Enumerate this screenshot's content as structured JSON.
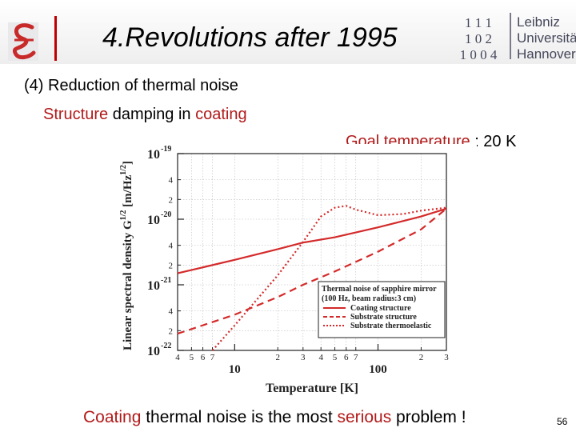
{
  "header": {
    "title": "4.Revolutions after 1995",
    "university": [
      "Leibniz",
      "Universität",
      "Hannover"
    ],
    "logo_numbers": [
      "1 1 1",
      "1 0 2",
      "1 0 0 4"
    ]
  },
  "body": {
    "section": "(4) Reduction of thermal noise",
    "subline_red1": "Structure",
    "subline_mid": " damping in ",
    "subline_red2": "coating",
    "goal_red": "Goal temperature",
    "goal_rest": " : 20 K"
  },
  "footer": {
    "conclusion_red1": "Coating",
    "conclusion_mid": " thermal noise is the most ",
    "conclusion_red2": "serious",
    "conclusion_end": " problem !",
    "page_number": "56"
  },
  "colors": {
    "accent_red": "#b21a1a",
    "curve_red": "#d42a2a"
  },
  "chart_data": {
    "type": "line",
    "xlabel": "Temperature [K]",
    "ylabel": "Linear spectral density G",
    "ylabel_sup": "1/2",
    "ylabel_units": "[m/Hz",
    "ylabel_units_sup": "1/2",
    "ylabel_units_close": "]",
    "x_scale": "log",
    "y_scale": "log",
    "xlim": [
      4,
      300
    ],
    "ylim": [
      1e-22,
      1e-19
    ],
    "x_major_ticks": [
      {
        "value": 10,
        "label": "10"
      },
      {
        "value": 100,
        "label": "100"
      }
    ],
    "x_minor_ticks": [
      {
        "value": 4,
        "label": "4"
      },
      {
        "value": 5,
        "label": "5"
      },
      {
        "value": 6,
        "label": "6"
      },
      {
        "value": 7,
        "label": "7"
      },
      {
        "value": 20,
        "label": "2"
      },
      {
        "value": 30,
        "label": "3"
      },
      {
        "value": 40,
        "label": "4"
      },
      {
        "value": 50,
        "label": "5"
      },
      {
        "value": 60,
        "label": "6"
      },
      {
        "value": 70,
        "label": "7"
      },
      {
        "value": 200,
        "label": "2"
      },
      {
        "value": 300,
        "label": "3"
      }
    ],
    "y_major_ticks": [
      {
        "value": 1e-22,
        "mantissa": "10",
        "exp": "-22"
      },
      {
        "value": 1e-21,
        "mantissa": "10",
        "exp": "-21"
      },
      {
        "value": 1e-20,
        "mantissa": "10",
        "exp": "-20"
      },
      {
        "value": 1e-19,
        "mantissa": "10",
        "exp": "-19"
      }
    ],
    "y_minor_ticks": [
      {
        "value": 2e-22,
        "label": "2"
      },
      {
        "value": 4e-22,
        "label": "4"
      },
      {
        "value": 2e-21,
        "label": "2"
      },
      {
        "value": 4e-21,
        "label": "4"
      },
      {
        "value": 2e-20,
        "label": "2"
      },
      {
        "value": 4e-20,
        "label": "4"
      }
    ],
    "grid": true,
    "legend": {
      "placement": "bottom-right",
      "title_lines": [
        "Thermal noise of sapphire mirror",
        "(100 Hz, beam radius:3 cm)"
      ],
      "entries": [
        "Coating structure",
        "Substrate structure",
        "Substrate thermoelastic"
      ]
    },
    "series": [
      {
        "name": "Coating structure",
        "style": "solid",
        "points": [
          [
            4,
            1.5e-21
          ],
          [
            10,
            2.4e-21
          ],
          [
            20,
            3.5e-21
          ],
          [
            30,
            4.4e-21
          ],
          [
            50,
            5.3e-21
          ],
          [
            100,
            7.5e-21
          ],
          [
            200,
            1.1e-20
          ],
          [
            300,
            1.45e-20
          ]
        ]
      },
      {
        "name": "Substrate structure",
        "style": "dashed",
        "points": [
          [
            4,
            1.8e-22
          ],
          [
            7,
            2.7e-22
          ],
          [
            10,
            3.5e-22
          ],
          [
            20,
            6.5e-22
          ],
          [
            30,
            1e-21
          ],
          [
            50,
            1.6e-21
          ],
          [
            100,
            3.2e-21
          ],
          [
            200,
            7e-21
          ],
          [
            300,
            1.45e-20
          ]
        ]
      },
      {
        "name": "Substrate thermoelastic",
        "style": "dotted",
        "points": [
          [
            7,
            1e-22
          ],
          [
            10,
            2.4e-22
          ],
          [
            20,
            1.4e-21
          ],
          [
            30,
            4.5e-21
          ],
          [
            40,
            1.1e-20
          ],
          [
            50,
            1.5e-20
          ],
          [
            60,
            1.6e-20
          ],
          [
            70,
            1.4e-20
          ],
          [
            100,
            1.15e-20
          ],
          [
            150,
            1.2e-20
          ],
          [
            200,
            1.35e-20
          ],
          [
            300,
            1.5e-20
          ]
        ]
      }
    ]
  }
}
